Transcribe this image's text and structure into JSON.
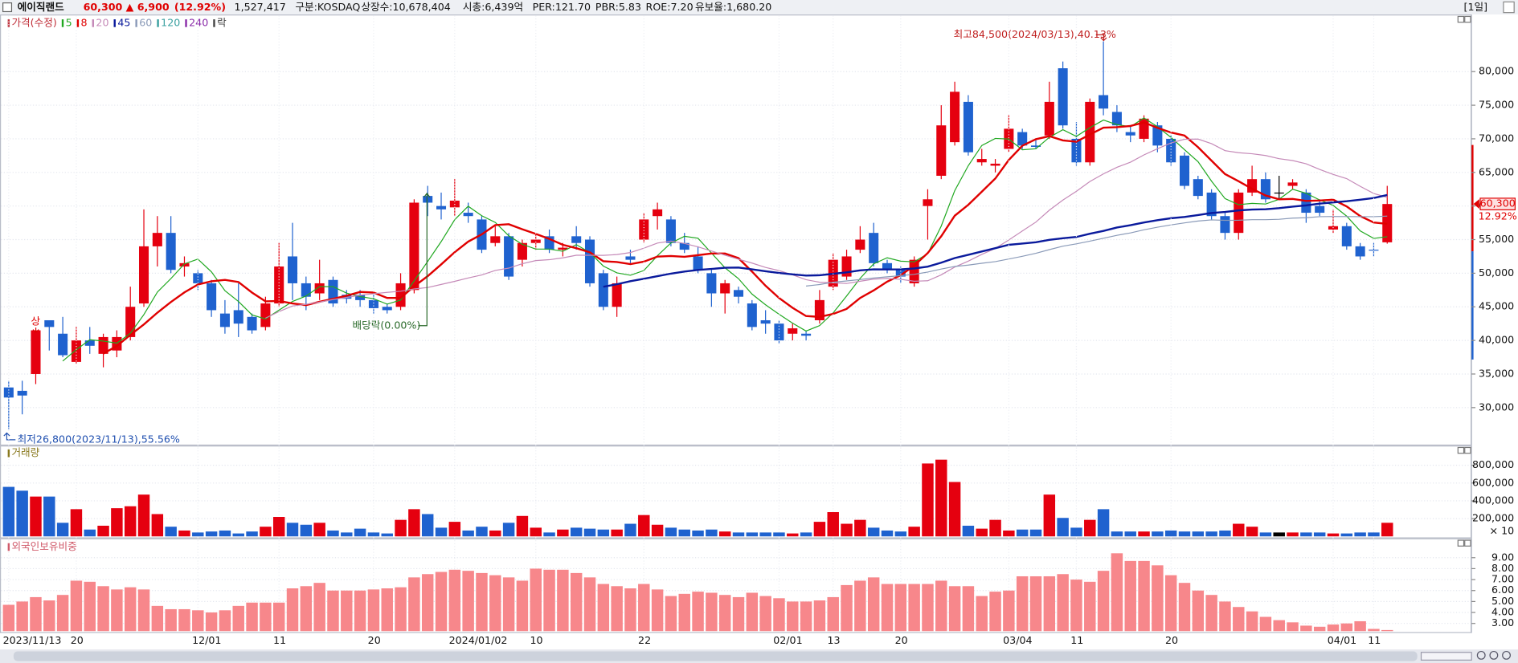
{
  "header": {
    "name": "에이직랜드",
    "price": "60,300",
    "change": "▲ 6,900",
    "change_rate": "(12.92%)",
    "volume": "1,527,417",
    "market": "구분:KOSDAQ",
    "shares": "상장수:10,678,404",
    "cap": "시총:6,439억",
    "per": "PER:121.70",
    "pbr": "PBR:5.83",
    "roe": "ROE:7.20",
    "reserve": "유보율:1,680.20",
    "period": "[1일]"
  },
  "chart_data": [
    {
      "type": "candlestick",
      "title": "가격(수정)",
      "legend_extra": "락",
      "ma": [
        {
          "name": "5",
          "color": "#20a820"
        },
        {
          "name": "8",
          "color": "#e00000"
        },
        {
          "name": "20",
          "color": "#c58ab8"
        },
        {
          "name": "45",
          "color": "#0a1a9c"
        },
        {
          "name": "60",
          "color": "#8a9ab8"
        },
        {
          "name": "120",
          "color": "#3aa0a0"
        },
        {
          "name": "240",
          "color": "#8a2aa8"
        }
      ],
      "up_color": "#e5000f",
      "down_color": "#1f62cf",
      "flat_color": "#000000",
      "categories": [
        "2023/11/13",
        null,
        null,
        null,
        null,
        "20",
        null,
        null,
        null,
        null,
        null,
        null,
        null,
        null,
        "12/01",
        null,
        null,
        null,
        null,
        null,
        "11",
        null,
        null,
        null,
        null,
        null,
        null,
        "20",
        null,
        null,
        null,
        null,
        null,
        "2024/01/02",
        null,
        null,
        null,
        null,
        null,
        "10",
        null,
        null,
        null,
        null,
        null,
        null,
        null,
        "22",
        null,
        null,
        null,
        null,
        null,
        null,
        null,
        null,
        null,
        "02/01",
        null,
        null,
        null,
        "13",
        null,
        null,
        null,
        null,
        "20",
        null,
        null,
        null,
        null,
        null,
        null,
        null,
        "03/04",
        null,
        null,
        null,
        null,
        "11",
        null,
        null,
        null,
        null,
        null,
        null,
        "20",
        null,
        null,
        null,
        null,
        null,
        null,
        null,
        null,
        null,
        null,
        null,
        "04/01",
        null,
        null,
        "11",
        null
      ],
      "open": [
        33000,
        32500,
        35000,
        43000,
        41000,
        36800,
        40000,
        38000,
        38500,
        40500,
        45500,
        54000,
        56000,
        51000,
        50000,
        48500,
        44000,
        44500,
        43500,
        42000,
        45500,
        52500,
        48500,
        47000,
        49000,
        46800,
        46800,
        46000,
        45000,
        45000,
        47500,
        61500,
        60000,
        59800,
        59000,
        58000,
        54500,
        55500,
        52000,
        54500,
        55500,
        53500,
        55500,
        55000,
        50000,
        45000,
        52500,
        55000,
        58500,
        58000,
        54500,
        52500,
        50000,
        47000,
        47500,
        45500,
        43000,
        42500,
        41000,
        41000,
        43000,
        48000,
        49500,
        53500,
        56000,
        51500,
        50500,
        48500,
        60000,
        64500,
        69500,
        75500,
        66500,
        66000,
        68500,
        71000,
        69000,
        70500,
        80500,
        70000,
        66500,
        76500,
        74000,
        71000,
        70000,
        72000,
        70000,
        67500,
        64000,
        62000,
        58500,
        56000,
        62000,
        64000,
        62000,
        63000,
        62000,
        60000,
        56500,
        57000,
        54000,
        53500,
        54600
      ],
      "close": [
        31500,
        31800,
        41500,
        42000,
        37800,
        40000,
        39200,
        40500,
        40500,
        45000,
        54000,
        56000,
        50500,
        51500,
        48500,
        44500,
        42000,
        42500,
        41500,
        45500,
        51000,
        48500,
        46500,
        48500,
        45500,
        46200,
        46000,
        44800,
        44500,
        48500,
        60500,
        60500,
        59500,
        60800,
        58500,
        53500,
        55500,
        49500,
        54500,
        55000,
        53500,
        53800,
        54500,
        48500,
        45000,
        48500,
        52000,
        58000,
        59500,
        54500,
        53500,
        50500,
        47000,
        48500,
        46500,
        42000,
        42500,
        40000,
        41800,
        40700,
        46000,
        52000,
        52500,
        55000,
        51500,
        50500,
        49500,
        52000,
        61000,
        72000,
        77000,
        68000,
        67000,
        66300,
        71500,
        69000,
        68800,
        75500,
        72000,
        66500,
        75500,
        74500,
        72000,
        70500,
        73000,
        69000,
        66500,
        63000,
        61500,
        58500,
        56000,
        62000,
        64000,
        61000,
        62000,
        63500,
        59000,
        59000,
        57000,
        54000,
        52500,
        53400,
        60300
      ],
      "high": [
        34000,
        34000,
        41500,
        43000,
        43500,
        42000,
        42000,
        41000,
        41500,
        48000,
        59500,
        58500,
        58500,
        52500,
        50500,
        49000,
        46000,
        48500,
        44000,
        46500,
        54500,
        57500,
        49500,
        52000,
        49500,
        47500,
        47500,
        47000,
        45500,
        50000,
        61000,
        63000,
        62000,
        64000,
        60500,
        58500,
        57000,
        56000,
        55000,
        56000,
        56500,
        54500,
        57000,
        55500,
        50500,
        49500,
        53500,
        59000,
        60500,
        58500,
        56000,
        54000,
        50500,
        49000,
        48000,
        46000,
        44500,
        43000,
        42500,
        41500,
        47500,
        53000,
        53500,
        57000,
        57500,
        52000,
        51000,
        52500,
        62500,
        75000,
        78500,
        76500,
        68500,
        67000,
        73500,
        71500,
        70000,
        78500,
        81500,
        72500,
        76000,
        84500,
        75000,
        72000,
        73500,
        72500,
        70500,
        68000,
        64500,
        62500,
        59000,
        62500,
        66000,
        65000,
        64500,
        64000,
        62500,
        61000,
        59500,
        57500,
        54500,
        54500,
        63000
      ],
      "low": [
        26800,
        29000,
        33500,
        38500,
        37500,
        36500,
        38000,
        36000,
        37500,
        40000,
        45000,
        51000,
        50000,
        49500,
        47500,
        43500,
        41000,
        40500,
        41000,
        41500,
        45000,
        46000,
        44500,
        46000,
        45000,
        45500,
        45000,
        44000,
        44000,
        44500,
        47000,
        58500,
        58000,
        58500,
        57500,
        53000,
        54000,
        49000,
        51000,
        53500,
        53000,
        52500,
        53500,
        48000,
        44500,
        43500,
        51500,
        54500,
        56500,
        54000,
        53000,
        50000,
        45000,
        44000,
        45500,
        41500,
        41000,
        39500,
        40000,
        40000,
        42500,
        47500,
        49000,
        53000,
        51000,
        50000,
        48500,
        48000,
        55000,
        64000,
        69000,
        67500,
        66000,
        65000,
        68000,
        68500,
        68500,
        70000,
        71500,
        66000,
        66000,
        73500,
        71000,
        69500,
        69500,
        68000,
        66000,
        62500,
        61000,
        58000,
        55000,
        55000,
        61500,
        60500,
        61000,
        62500,
        57500,
        58500,
        56000,
        53500,
        52000,
        52500,
        54400
      ],
      "ylim": [
        24500,
        88500
      ],
      "yticks": [
        {
          "value": 30000,
          "label": "30,000"
        },
        {
          "value": 35000,
          "label": "35,000"
        },
        {
          "value": 40000,
          "label": "40,000"
        },
        {
          "value": 45000,
          "label": "45,000"
        },
        {
          "value": 50000,
          "label": "50,000"
        },
        {
          "value": 55000,
          "label": "55,000"
        },
        {
          "value": 60000,
          "label": "60,000"
        },
        {
          "value": 65000,
          "label": "65,000"
        },
        {
          "value": 70000,
          "label": "70,000"
        },
        {
          "value": 75000,
          "label": "75,000"
        },
        {
          "value": 80000,
          "label": "80,000"
        }
      ],
      "annotations": [
        "최고84,500(2024/03/13),40.13%",
        "최저26,800(2023/11/13),55.56%",
        "배당락(0.00%)",
        "상"
      ],
      "last_price_label": "60,300",
      "last_change_label": "12.92%"
    },
    {
      "type": "bar",
      "title": "거래량",
      "color_by": "candle",
      "unit_label": "× 10",
      "values": [
        557000,
        514000,
        448000,
        448000,
        153000,
        306000,
        77000,
        120000,
        317000,
        339000,
        470000,
        251000,
        109000,
        66000,
        44000,
        55000,
        66000,
        33000,
        55000,
        109000,
        219000,
        153000,
        131000,
        153000,
        66000,
        44000,
        87000,
        44000,
        33000,
        186000,
        306000,
        251000,
        98000,
        164000,
        66000,
        109000,
        66000,
        153000,
        230000,
        98000,
        44000,
        77000,
        98000,
        87000,
        77000,
        77000,
        142000,
        240000,
        131000,
        98000,
        77000,
        66000,
        77000,
        55000,
        44000,
        44000,
        44000,
        44000,
        33000,
        44000,
        164000,
        273000,
        142000,
        186000,
        98000,
        66000,
        55000,
        109000,
        820000,
        863000,
        612000,
        120000,
        87000,
        186000,
        66000,
        77000,
        77000,
        470000,
        208000,
        98000,
        186000,
        306000,
        55000,
        55000,
        55000,
        55000,
        66000,
        55000,
        55000,
        55000,
        66000,
        142000,
        109000,
        44000,
        44000,
        44000,
        44000,
        44000,
        33000,
        33000,
        44000,
        44000,
        153000
      ],
      "ylim": [
        0,
        1000000
      ],
      "yticks": [
        {
          "value": 200000,
          "label": "200,000"
        },
        {
          "value": 400000,
          "label": "400,000"
        },
        {
          "value": 600000,
          "label": "600,000"
        },
        {
          "value": 800000,
          "label": "800,000"
        }
      ]
    },
    {
      "type": "bar",
      "title": "외국인보유비중",
      "color": "#f7878b",
      "values": [
        4.7,
        5.0,
        5.4,
        5.1,
        5.6,
        6.9,
        6.8,
        6.4,
        6.1,
        6.3,
        6.1,
        4.6,
        4.3,
        4.3,
        4.2,
        4.0,
        4.2,
        4.6,
        4.9,
        4.9,
        4.9,
        6.2,
        6.4,
        6.7,
        6.0,
        6.0,
        6.0,
        6.1,
        6.2,
        6.3,
        7.2,
        7.5,
        7.7,
        7.9,
        7.8,
        7.6,
        7.4,
        7.2,
        6.9,
        8.0,
        7.9,
        7.9,
        7.6,
        7.2,
        6.6,
        6.4,
        6.2,
        6.6,
        6.1,
        5.5,
        5.7,
        5.9,
        5.8,
        5.6,
        5.4,
        5.8,
        5.5,
        5.3,
        5.0,
        5.0,
        5.1,
        5.4,
        6.5,
        6.9,
        7.2,
        6.6,
        6.6,
        6.6,
        6.6,
        6.9,
        6.4,
        6.4,
        5.5,
        5.9,
        6.0,
        7.3,
        7.3,
        7.3,
        7.5,
        7.0,
        6.8,
        7.8,
        9.4,
        8.7,
        8.7,
        8.3,
        7.4,
        6.7,
        6.0,
        5.6,
        5.0,
        4.5,
        4.1,
        3.6,
        3.3,
        3.1,
        2.8,
        2.7,
        2.9,
        3.0,
        3.2,
        2.5,
        2.4
      ],
      "ylim": [
        2.3,
        10.5
      ],
      "yticks": [
        {
          "value": 3,
          "label": "3.00"
        },
        {
          "value": 4,
          "label": "4.00"
        },
        {
          "value": 5,
          "label": "5.00"
        },
        {
          "value": 6,
          "label": "6.00"
        },
        {
          "value": 7,
          "label": "7.00"
        },
        {
          "value": 8,
          "label": "8.00"
        },
        {
          "value": 9,
          "label": "9.00"
        }
      ]
    }
  ]
}
